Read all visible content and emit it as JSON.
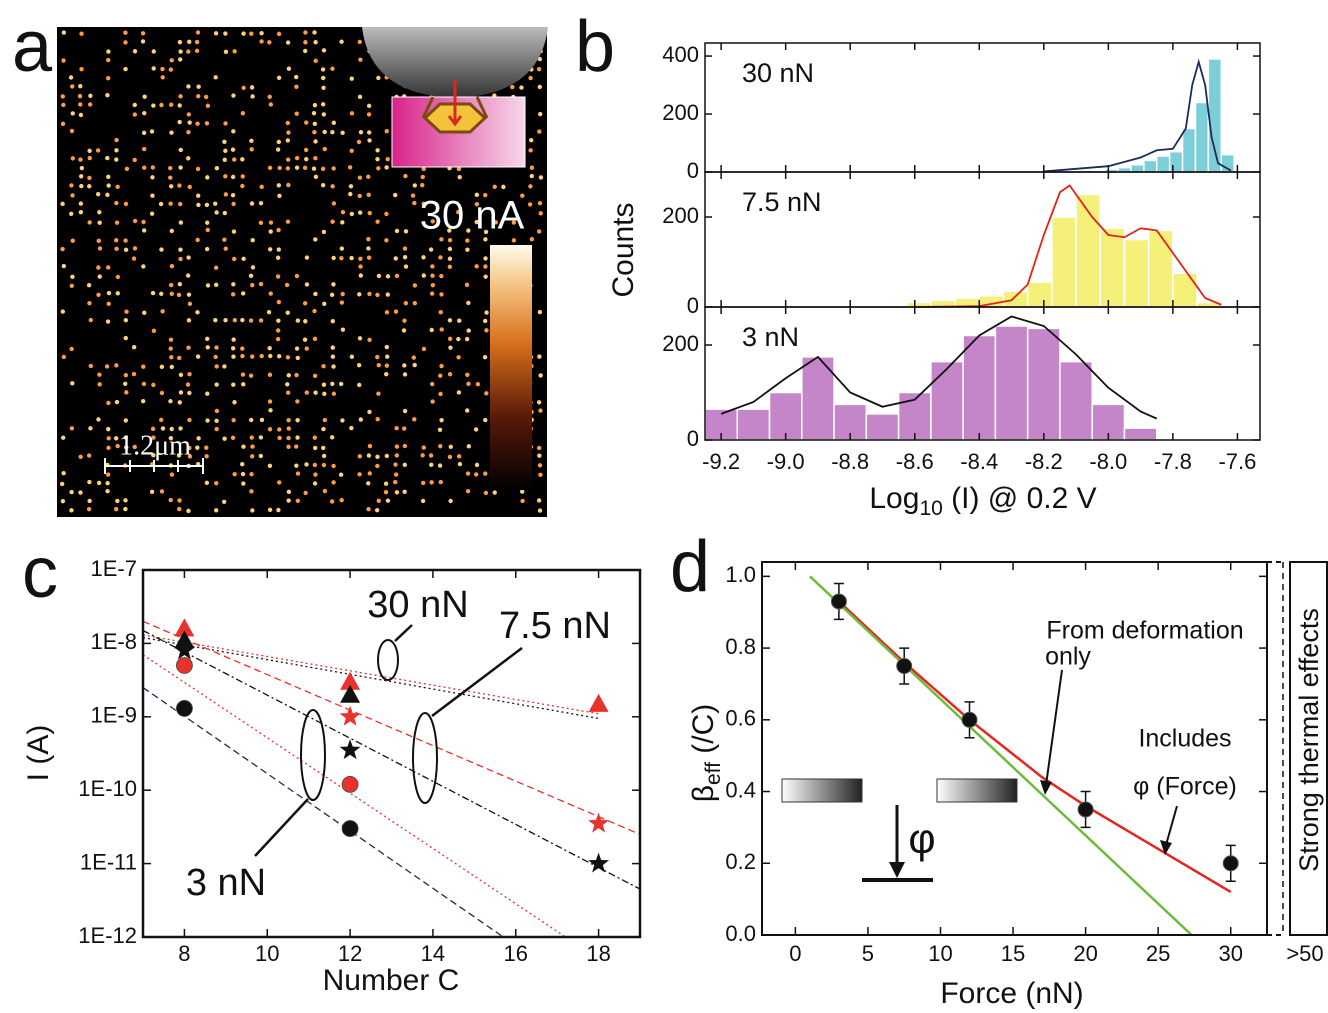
{
  "chart_data": [
    {
      "type": "image",
      "panel_label": "a",
      "scale_bar": "1.2μm",
      "colorbar_label": "30 nA"
    },
    {
      "type": "histogram",
      "panel_label": "b",
      "xlabel": "Log",
      "xlabel_sub": "10",
      "xlabel_tail": " (I) @ 0.2 V",
      "ylabel": "Counts",
      "xlim": [
        -9.25,
        -7.53
      ],
      "xticks": [
        -9.2,
        {
          "value": -9,
          "label": "-9.0"
        },
        -8.8,
        -8.6,
        -8.4,
        -8.2,
        {
          "value": -8,
          "label": "-8.0"
        },
        -7.8,
        -7.6
      ],
      "panels": [
        {
          "label": "30 nN",
          "color": "#7ccfd8",
          "fit_color": "#1c2b5e",
          "ylim": [
            0,
            445
          ],
          "yticks": [
            0,
            200,
            400
          ],
          "bins": [
            -8.05,
            -8.01,
            -7.97,
            -7.93,
            -7.89,
            -7.85,
            -7.81,
            -7.77,
            -7.73,
            -7.69,
            -7.65,
            -7.61
          ],
          "values": [
            5,
            10,
            15,
            25,
            40,
            55,
            70,
            150,
            240,
            390,
            60
          ],
          "fit": {
            "x": [
              -8.2,
              -8.0,
              -7.9,
              -7.85,
              -7.8,
              -7.76,
              -7.74,
              -7.72,
              -7.7,
              -7.68,
              -7.66,
              -7.62
            ],
            "values": [
              2,
              20,
              50,
              75,
              80,
              150,
              300,
              380,
              300,
              120,
              30,
              5
            ]
          }
        },
        {
          "label": "7.5 nN",
          "color": "#f4f07a",
          "fit_color": "#e2231a",
          "ylim": [
            0,
            300
          ],
          "yticks": [
            0,
            200
          ],
          "bins": [
            -8.625,
            -8.55,
            -8.475,
            -8.4,
            -8.325,
            -8.25,
            -8.175,
            -8.1,
            -8.025,
            -7.95,
            -7.875,
            -7.8,
            -7.725,
            -7.65
          ],
          "values": [
            10,
            15,
            20,
            25,
            35,
            55,
            200,
            250,
            175,
            150,
            170,
            75,
            10
          ],
          "fit": {
            "x": [
              -8.6,
              -8.4,
              -8.3,
              -8.25,
              -8.2,
              -8.15,
              -8.12,
              -8.05,
              -8.0,
              -7.95,
              -7.9,
              -7.85,
              -7.8,
              -7.7,
              -7.65
            ],
            "values": [
              0,
              2,
              15,
              50,
              160,
              255,
              270,
              200,
              160,
              155,
              175,
              170,
              120,
              20,
              5
            ]
          }
        },
        {
          "label": "3 nN",
          "color": "#c585c9",
          "fit_color": "#111111",
          "ylim": [
            0,
            280
          ],
          "yticks": [
            0,
            200
          ],
          "bins": [
            -9.25,
            -9.15,
            -9.05,
            -8.95,
            -8.85,
            -8.75,
            -8.65,
            -8.55,
            -8.45,
            -8.35,
            -8.25,
            -8.15,
            -8.05,
            -7.95,
            -7.85
          ],
          "values": [
            65,
            65,
            100,
            175,
            75,
            55,
            100,
            165,
            220,
            240,
            235,
            165,
            75,
            25
          ],
          "fit": {
            "x": [
              -9.2,
              -9.1,
              -9.0,
              -8.9,
              -8.8,
              -8.7,
              -8.6,
              -8.5,
              -8.4,
              -8.3,
              -8.2,
              -8.1,
              -8.0,
              -7.9,
              -7.85
            ],
            "values": [
              55,
              80,
              130,
              175,
              100,
              70,
              85,
              150,
              220,
              260,
              240,
              180,
              110,
              60,
              45
            ]
          }
        }
      ]
    },
    {
      "type": "scatter",
      "panel_label": "c",
      "xlabel": "Number C",
      "ylabel": "I (A)",
      "log_y": true,
      "xlim": [
        7,
        19
      ],
      "xticks": [
        8,
        10,
        12,
        14,
        16,
        18
      ],
      "ylim": [
        1e-12,
        1e-07
      ],
      "yticks": [
        {
          "value": 1e-12,
          "label": "1E-12"
        },
        {
          "value": 1e-11,
          "label": "1E-11"
        },
        {
          "value": 1e-10,
          "label": "1E-10"
        },
        {
          "value": 1e-09,
          "label": "1E-9"
        },
        {
          "value": 1e-08,
          "label": "1E-8"
        },
        {
          "value": 1e-07,
          "label": "1E-7"
        }
      ],
      "series": [
        {
          "color": "#e8322c",
          "marker": "triangle",
          "x": [
            8,
            12,
            18
          ],
          "values": [
            1.6e-08,
            3e-09,
            1.5e-09
          ]
        },
        {
          "color": "#111111",
          "marker": "triangle",
          "x": [
            8,
            12
          ],
          "values": [
            1.1e-08,
            2e-09
          ]
        },
        {
          "color": "#e8322c",
          "marker": "star",
          "x": [
            12,
            18
          ],
          "values": [
            1e-09,
            3.5e-11
          ]
        },
        {
          "color": "#111111",
          "marker": "star",
          "x": [
            8,
            12,
            18
          ],
          "values": [
            8e-09,
            3.5e-10,
            1e-11
          ]
        },
        {
          "color": "#e8322c",
          "marker": "circle",
          "x": [
            8,
            12
          ],
          "values": [
            5e-09,
            1.2e-10
          ]
        },
        {
          "color": "#111111",
          "marker": "circle",
          "x": [
            8,
            12
          ],
          "values": [
            1.3e-09,
            3e-11
          ]
        }
      ],
      "fits": [
        {
          "color": "#e8322c",
          "dash": "2 3",
          "x": [
            7,
            18
          ],
          "values": [
            1.3e-08,
            1.1e-09
          ]
        },
        {
          "color": "#111111",
          "dash": "2 3",
          "x": [
            7,
            18
          ],
          "values": [
            1.2e-08,
            9.5e-10
          ]
        },
        {
          "color": "#e8322c",
          "dash": "7 4",
          "x": [
            7,
            19
          ],
          "values": [
            2e-08,
            2.5e-11
          ]
        },
        {
          "color": "#111111",
          "dash": "7 3 2 3",
          "x": [
            7,
            19
          ],
          "values": [
            1.5e-08,
            4.5e-12
          ]
        },
        {
          "color": "#e8322c",
          "dash": "2 3",
          "x": [
            7,
            17.2
          ],
          "values": [
            7e-09,
            1e-12
          ]
        },
        {
          "color": "#1c2b5e",
          "dash": "7 4",
          "x": [
            7,
            15.7
          ],
          "values": [
            2.5e-09,
            1e-12
          ]
        }
      ],
      "annotations": [
        "30 nN",
        "7.5 nN",
        "3 nN"
      ]
    },
    {
      "type": "scatter",
      "panel_label": "d",
      "xlabel": "Force (nN)",
      "ylabel": "β",
      "ylabel_sub": "eff",
      "ylabel_tail": " (/C)",
      "xlim": [
        -2.3,
        32.5
      ],
      "xticks": [
        0,
        5,
        10,
        15,
        20,
        25,
        30
      ],
      "extra_xtick": ">50",
      "ylim": [
        0,
        1.04
      ],
      "yticks": [
        {
          "value": 0,
          "label": "0.0"
        },
        0.2,
        0.4,
        0.6,
        0.8,
        {
          "value": 1,
          "label": "1.0"
        }
      ],
      "points": {
        "color": "#111111",
        "x": [
          3,
          7.5,
          12,
          20,
          30
        ],
        "values": [
          0.93,
          0.75,
          0.6,
          0.35,
          0.2
        ],
        "errors": [
          0.05,
          0.05,
          0.05,
          0.05,
          0.05
        ]
      },
      "lines": [
        {
          "color": "#e52620",
          "x": [
            3,
            7.5,
            12,
            17,
            20,
            25,
            30
          ],
          "values": [
            0.93,
            0.76,
            0.6,
            0.44,
            0.36,
            0.24,
            0.12
          ]
        },
        {
          "color": "#6cbb3c",
          "x": [
            1,
            27.3
          ],
          "values": [
            1.0,
            0
          ]
        }
      ],
      "annotations": [
        "From deformation",
        "only",
        "Includes",
        "φ (Force)",
        "φ",
        "Strong thermal effects"
      ]
    }
  ]
}
